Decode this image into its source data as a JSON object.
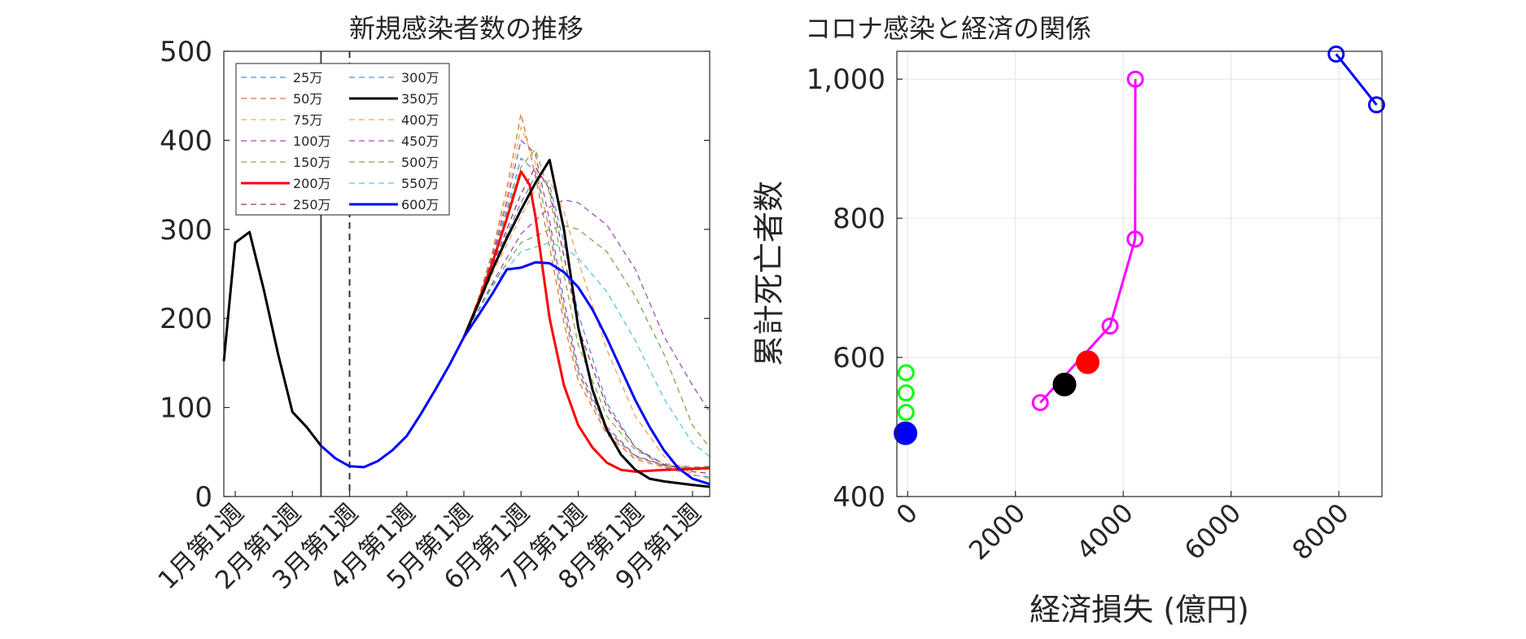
{
  "chart_data": [
    {
      "type": "line",
      "title": "新規感染者数の推移",
      "xlabel": "",
      "ylabel": "",
      "ylim": [
        0,
        500
      ],
      "yticks": [
        0,
        100,
        200,
        300,
        400,
        500
      ],
      "xlim": [
        -0.2,
        8.3
      ],
      "xtick_positions": [
        0,
        1,
        2,
        3,
        4,
        5,
        6,
        7,
        8
      ],
      "xtick_labels": [
        "1月第1週",
        "2月第1週",
        "3月第1週",
        "4月第1週",
        "5月第1週",
        "6月第1週",
        "7月第1週",
        "8月第1週",
        "9月第1週"
      ],
      "grid": false,
      "legend_position": "top-left",
      "vertical_lines": [
        {
          "x": 1.5,
          "style": "solid"
        },
        {
          "x": 2.0,
          "style": "dashed"
        }
      ],
      "series": [
        {
          "name": "",
          "color": "#000000",
          "style": "solid",
          "width": 3,
          "x": [
            -0.2,
            0.0,
            0.25,
            0.5,
            0.75,
            1.0,
            1.25,
            1.5
          ],
          "y": [
            152,
            285,
            297,
            232,
            160,
            95,
            78,
            57
          ]
        },
        {
          "name": "",
          "color": "#0000ff",
          "style": "solid",
          "width": 3,
          "x": [
            1.5,
            1.75,
            2.0,
            2.25,
            2.5,
            2.75,
            3.0,
            3.25,
            3.5,
            3.75,
            4.0
          ],
          "y": [
            57,
            43,
            34,
            33,
            40,
            52,
            68,
            93,
            120,
            148,
            179
          ]
        },
        {
          "name": "25万",
          "color": "#4c8ed6",
          "style": "dashed",
          "width": 1.3,
          "x": [
            4.0,
            4.25,
            4.5,
            4.75,
            5.0,
            5.25,
            5.5,
            5.75,
            6.0,
            6.5,
            7.0,
            7.5,
            8.0,
            8.3
          ],
          "y": [
            179,
            220,
            268,
            322,
            380,
            365,
            300,
            210,
            140,
            75,
            45,
            35,
            32,
            33
          ]
        },
        {
          "name": "50万",
          "color": "#e0703a",
          "style": "dashed",
          "width": 1.3,
          "x": [
            4.0,
            4.25,
            4.5,
            4.75,
            5.0,
            5.25,
            5.5,
            5.75,
            6.0,
            6.5,
            7.0,
            7.5,
            8.0,
            8.3
          ],
          "y": [
            179,
            222,
            275,
            345,
            430,
            360,
            280,
            195,
            130,
            70,
            42,
            33,
            30,
            31
          ]
        },
        {
          "name": "75万",
          "color": "#f0b44c",
          "style": "dashed",
          "width": 1.3,
          "x": [
            4.0,
            4.25,
            4.5,
            4.75,
            5.0,
            5.25,
            5.5,
            5.75,
            6.0,
            6.5,
            7.0,
            7.5,
            8.0,
            8.3
          ],
          "y": [
            179,
            221,
            272,
            335,
            415,
            375,
            295,
            205,
            137,
            73,
            44,
            34,
            31,
            32
          ]
        },
        {
          "name": "100万",
          "color": "#9b4fa8",
          "style": "dashed",
          "width": 1.3,
          "x": [
            4.0,
            4.25,
            4.5,
            4.75,
            5.0,
            5.25,
            5.5,
            5.75,
            6.0,
            6.5,
            7.0,
            7.5,
            8.0,
            8.3
          ],
          "y": [
            179,
            220,
            270,
            330,
            400,
            385,
            310,
            220,
            145,
            78,
            46,
            35,
            32,
            33
          ]
        },
        {
          "name": "150万",
          "color": "#8aad3f",
          "style": "dashed",
          "width": 1.3,
          "x": [
            4.0,
            4.25,
            4.5,
            4.75,
            5.0,
            5.25,
            5.5,
            5.75,
            6.0,
            6.5,
            7.0,
            7.5,
            8.0,
            8.3
          ],
          "y": [
            179,
            219,
            266,
            318,
            370,
            390,
            340,
            250,
            170,
            90,
            52,
            37,
            33,
            34
          ]
        },
        {
          "name": "200万",
          "color": "#ff0000",
          "style": "solid",
          "width": 3,
          "x": [
            4.0,
            4.25,
            4.5,
            4.75,
            5.0,
            5.15,
            5.25,
            5.5,
            5.75,
            6.0,
            6.25,
            6.5,
            6.75,
            7.0,
            7.5,
            8.0,
            8.3
          ],
          "y": [
            179,
            218,
            263,
            312,
            365,
            350,
            315,
            200,
            125,
            80,
            55,
            38,
            30,
            28,
            30,
            31,
            32
          ]
        },
        {
          "name": "250万",
          "color": "#a5375e",
          "style": "dashed",
          "width": 1.3,
          "x": [
            4.0,
            4.25,
            4.5,
            4.75,
            5.0,
            5.25,
            5.5,
            5.75,
            6.0,
            6.5,
            7.0,
            7.5,
            8.0,
            8.3
          ],
          "y": [
            179,
            217,
            260,
            300,
            340,
            370,
            345,
            270,
            190,
            100,
            55,
            36,
            28,
            26
          ]
        },
        {
          "name": "300万",
          "color": "#5a8fd0",
          "style": "dashed",
          "width": 1.3,
          "x": [
            4.0,
            4.25,
            4.5,
            4.75,
            5.0,
            5.25,
            5.5,
            5.75,
            6.0,
            6.5,
            7.0,
            7.5,
            8.0,
            8.3
          ],
          "y": [
            179,
            216,
            257,
            295,
            330,
            360,
            350,
            285,
            205,
            105,
            55,
            33,
            24,
            22
          ]
        },
        {
          "name": "350万",
          "color": "#000000",
          "style": "solid",
          "width": 3,
          "x": [
            4.0,
            4.25,
            4.5,
            4.75,
            5.0,
            5.25,
            5.5,
            5.75,
            6.0,
            6.25,
            6.5,
            6.75,
            7.0,
            7.25,
            7.5,
            8.0,
            8.3
          ],
          "y": [
            179,
            216,
            255,
            290,
            322,
            352,
            378,
            300,
            190,
            120,
            75,
            47,
            30,
            20,
            17,
            13,
            11
          ]
        },
        {
          "name": "400万",
          "color": "#f0a060",
          "style": "dashed",
          "width": 1.3,
          "x": [
            4.0,
            4.5,
            5.0,
            5.25,
            5.5,
            5.75,
            6.0,
            6.5,
            7.0,
            7.5,
            8.0,
            8.3
          ],
          "y": [
            179,
            250,
            315,
            345,
            355,
            320,
            265,
            165,
            90,
            45,
            25,
            20
          ]
        },
        {
          "name": "450万",
          "color": "#a050b0",
          "style": "dashed",
          "width": 1.3,
          "x": [
            4.0,
            4.5,
            5.0,
            5.5,
            5.75,
            6.0,
            6.5,
            7.0,
            7.5,
            8.0,
            8.3
          ],
          "y": [
            179,
            240,
            295,
            325,
            333,
            330,
            305,
            255,
            180,
            125,
            95
          ]
        },
        {
          "name": "500万",
          "color": "#7aa84a",
          "style": "dashed",
          "width": 1.3,
          "x": [
            4.0,
            4.5,
            5.0,
            5.5,
            5.75,
            6.0,
            6.5,
            7.0,
            7.5,
            8.0,
            8.3
          ],
          "y": [
            179,
            238,
            285,
            300,
            304,
            300,
            275,
            225,
            160,
            80,
            55
          ]
        },
        {
          "name": "550万",
          "color": "#5ec4e8",
          "style": "dashed",
          "width": 1.3,
          "x": [
            4.0,
            4.5,
            5.0,
            5.5,
            5.75,
            6.0,
            6.5,
            7.0,
            7.5,
            8.0,
            8.3
          ],
          "y": [
            179,
            236,
            275,
            285,
            280,
            268,
            230,
            175,
            110,
            60,
            45
          ]
        },
        {
          "name": "600万",
          "color": "#0000ff",
          "style": "solid",
          "width": 3,
          "x": [
            4.0,
            4.25,
            4.5,
            4.75,
            5.0,
            5.25,
            5.5,
            5.75,
            6.0,
            6.25,
            6.5,
            6.75,
            7.0,
            7.25,
            7.5,
            7.75,
            8.0,
            8.3
          ],
          "y": [
            179,
            203,
            228,
            255,
            257,
            263,
            262,
            252,
            235,
            210,
            178,
            143,
            108,
            78,
            52,
            32,
            20,
            14
          ]
        }
      ]
    },
    {
      "type": "scatter",
      "title": "コロナ感染と経済の関係",
      "xlabel": "経済損失 (億円)",
      "ylabel": "累計死亡者数",
      "xlim": [
        -200,
        8800
      ],
      "ylim": [
        400,
        1040
      ],
      "xticks": [
        0,
        2000,
        4000,
        6000,
        8000
      ],
      "yticks": [
        400,
        600,
        800,
        1000
      ],
      "ytick_labels": [
        "400",
        "600",
        "800",
        "1,000"
      ],
      "grid": true,
      "series": [
        {
          "color": "#00ff00",
          "marker": "open-circle",
          "line": false,
          "points": [
            {
              "x": -30,
              "y": 578
            },
            {
              "x": -30,
              "y": 549
            },
            {
              "x": -30,
              "y": 521
            }
          ]
        },
        {
          "color": "#0000ff",
          "marker": "filled-circle",
          "size": "large",
          "points": [
            {
              "x": -40,
              "y": 491
            }
          ]
        },
        {
          "color": "#ff00ff",
          "marker": "open-circle",
          "line": true,
          "points": [
            {
              "x": 2460,
              "y": 535
            },
            {
              "x": 3755,
              "y": 645
            },
            {
              "x": 4220,
              "y": 770
            },
            {
              "x": 4225,
              "y": 1000
            }
          ]
        },
        {
          "color": "#000000",
          "marker": "filled-circle",
          "size": "large",
          "points": [
            {
              "x": 2910,
              "y": 561
            }
          ]
        },
        {
          "color": "#ff0000",
          "marker": "filled-circle",
          "size": "large",
          "points": [
            {
              "x": 3340,
              "y": 593
            }
          ]
        },
        {
          "color": "#0000ff",
          "marker": "open-circle",
          "line": true,
          "points": [
            {
              "x": 7950,
              "y": 1036
            },
            {
              "x": 8700,
              "y": 963
            }
          ]
        }
      ]
    }
  ]
}
